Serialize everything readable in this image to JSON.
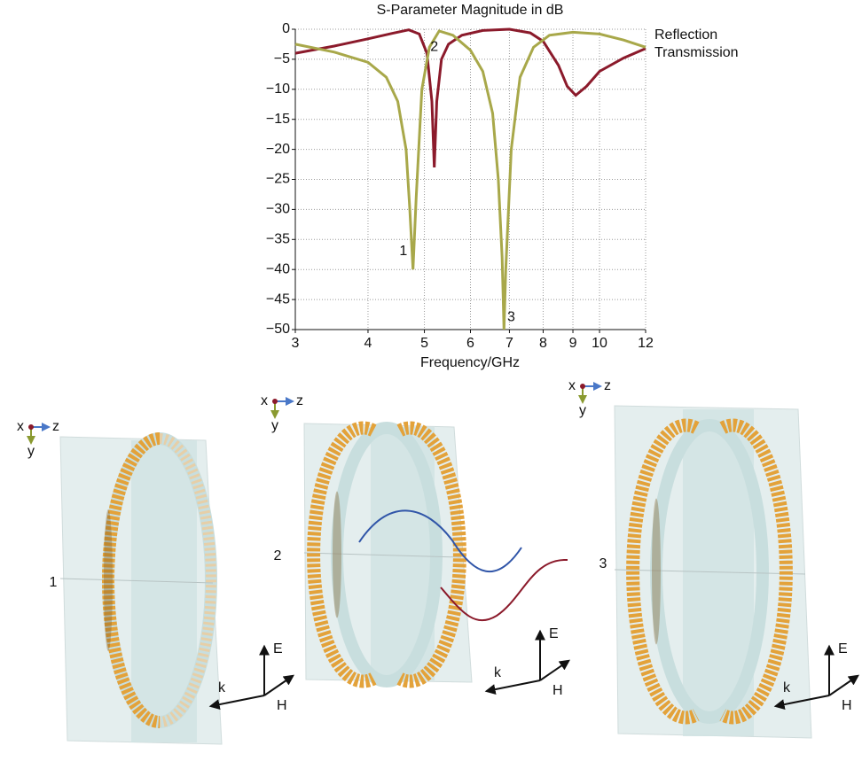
{
  "chart_data": {
    "type": "line",
    "title": "S-Parameter Magnitude in dB",
    "x_label": "Frequency/GHz",
    "xscale": "log",
    "xlim": [
      3,
      12
    ],
    "xticks": [
      3,
      4,
      5,
      6,
      7,
      8,
      9,
      10,
      12
    ],
    "ylim": [
      -50,
      0
    ],
    "yticks": [
      0,
      {
        "value": -5,
        "label": "−5"
      },
      {
        "value": -10,
        "label": "−10"
      },
      {
        "value": -15,
        "label": "−15"
      },
      {
        "value": -20,
        "label": "−20"
      },
      {
        "value": -25,
        "label": "−25"
      },
      {
        "value": -30,
        "label": "−30"
      },
      {
        "value": -35,
        "label": "−35"
      },
      {
        "value": -40,
        "label": "−40"
      },
      {
        "value": -45,
        "label": "−45"
      },
      {
        "value": -50,
        "label": "−50"
      }
    ],
    "grid": true,
    "legend": "right",
    "series": [
      {
        "name": "Reflection",
        "color": "#8b1a2b",
        "x": [
          3,
          3.5,
          4,
          4.4,
          4.7,
          4.9,
          5.05,
          5.15,
          5.2,
          5.25,
          5.35,
          5.5,
          5.8,
          6.3,
          7,
          7.6,
          8,
          8.5,
          8.8,
          9.1,
          9.5,
          10,
          11,
          12
        ],
        "values": [
          -4,
          -2.8,
          -1.6,
          -0.7,
          -0.1,
          -0.8,
          -4,
          -12,
          -23,
          -12,
          -5,
          -2.5,
          -1,
          -0.2,
          0,
          -0.6,
          -2,
          -6,
          -9.5,
          -11,
          -9.5,
          -7,
          -4.8,
          -3.2
        ]
      },
      {
        "name": "Transmission",
        "color": "#a8a84a",
        "x": [
          3,
          3.5,
          4,
          4.3,
          4.5,
          4.65,
          4.72,
          4.78,
          4.84,
          4.95,
          5.1,
          5.3,
          5.6,
          6,
          6.3,
          6.55,
          6.7,
          6.8,
          6.85,
          6.9,
          7.05,
          7.3,
          7.7,
          8.2,
          9,
          10,
          11,
          12
        ],
        "values": [
          -2.5,
          -3.8,
          -5.5,
          -8,
          -12,
          -20,
          -30,
          -40,
          -28,
          -10,
          -3,
          -0.3,
          -1,
          -3.5,
          -7,
          -14,
          -25,
          -38,
          -50,
          -40,
          -20,
          -8,
          -3,
          -1,
          -0.5,
          -0.8,
          -1.8,
          -3
        ]
      }
    ],
    "annotations": [
      {
        "text": "1",
        "x": 4.6,
        "y": -37
      },
      {
        "text": "2",
        "x": 5.2,
        "y": -3
      },
      {
        "text": "3",
        "x": 7.05,
        "y": -48
      }
    ]
  },
  "panels": [
    {
      "label": "1",
      "triad": [
        "x",
        "z",
        "y"
      ],
      "field": [
        "E",
        "k",
        "H"
      ]
    },
    {
      "label": "2",
      "triad": [
        "x",
        "z",
        "y"
      ],
      "field": [
        "E",
        "k",
        "H"
      ]
    },
    {
      "label": "3",
      "triad": [
        "x",
        "z",
        "y"
      ],
      "field": [
        "E",
        "k",
        "H"
      ]
    }
  ]
}
